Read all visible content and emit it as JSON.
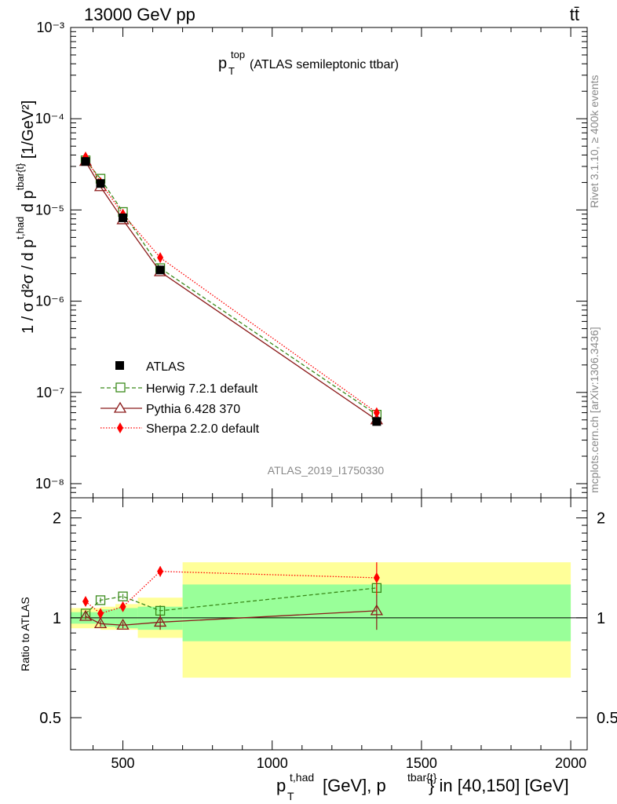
{
  "header": {
    "left_title": "13000 GeV pp",
    "right_title": "tt̄"
  },
  "main_plot": {
    "title_main": "p",
    "title_sub": "T",
    "title_sup": "top",
    "title_rest": " (ATLAS semileptonic ttbar)",
    "ylabel": "1 / σ d²σ / d p",
    "ylabel_sup1": "t,had",
    "ylabel_mid": " d p",
    "ylabel_sup2": "tbar{t}",
    "ylabel_unit": " [1/GeV²]",
    "analysis_tag": "ATLAS_2019_I1750330",
    "side_text_top": "Rivet 3.1.10, ≥ 400k events",
    "side_text_bottom": "mcplots.cern.ch [arXiv:1306.3436]"
  },
  "ratio_plot": {
    "ylabel": "Ratio to ATLAS"
  },
  "xaxis": {
    "label_p": "p",
    "label_sub": "T",
    "label_sup": "t,had",
    "label_mid": " [GeV], p",
    "label_sup2": "tbar{t}",
    "label_end": "} in [40,150] [GeV]"
  },
  "legend": [
    {
      "name": "ATLAS"
    },
    {
      "name": "Herwig 7.2.1 default"
    },
    {
      "name": "Pythia 6.428 370"
    },
    {
      "name": "Sherpa 2.2.0 default"
    }
  ],
  "chart_data": {
    "type": "line",
    "xlim": [
      325,
      2055
    ],
    "ylim_main": [
      7e-09,
      0.001
    ],
    "ylim_ratio": [
      0.4,
      2.3
    ],
    "xticks": [
      500,
      1000,
      1500,
      2000
    ],
    "xtick_labels": [
      "500",
      "1000",
      "1500",
      "2000"
    ],
    "ytick_labels_main": [
      "10⁻³",
      "10⁻⁴",
      "10⁻⁵",
      "10⁻⁶",
      "10⁻⁷",
      "10⁻⁸"
    ],
    "ytick_values_main": [
      0.001,
      0.0001,
      1e-05,
      1e-06,
      1e-07,
      1e-08
    ],
    "ytick_labels_ratio": [
      "2",
      "1",
      "0.5"
    ],
    "ytick_values_ratio": [
      2,
      1,
      0.5
    ],
    "bins": [
      [
        325,
        425
      ],
      [
        425,
        475
      ],
      [
        475,
        550
      ],
      [
        550,
        700
      ],
      [
        700,
        2000
      ]
    ],
    "x": [
      375,
      425,
      500,
      625,
      1350
    ],
    "series": [
      {
        "name": "ATLAS",
        "values": [
          3.4e-05,
          1.95e-05,
          8.2e-06,
          2.2e-06,
          4.8e-08
        ],
        "color": "#000000"
      },
      {
        "name": "Herwig 7.2.1 default",
        "values": [
          3.5e-05,
          2.2e-05,
          9.5e-06,
          2.3e-06,
          5.7e-08
        ],
        "ratio": [
          1.03,
          1.13,
          1.16,
          1.05,
          1.23
        ],
        "ratio_err": [
          0.02,
          0.02,
          0.02,
          0.04,
          0.03
        ],
        "color": "#3a8a1a"
      },
      {
        "name": "Pythia 6.428 370",
        "values": [
          3.4e-05,
          1.8e-05,
          7.8e-06,
          2.1e-06,
          5e-08
        ],
        "ratio": [
          1.01,
          0.96,
          0.95,
          0.97,
          1.05
        ],
        "ratio_err": [
          0.02,
          0.02,
          0.02,
          0.05,
          0.13
        ],
        "color": "#8b1a1a"
      },
      {
        "name": "Sherpa 2.2.0 default",
        "values": [
          3.8e-05,
          2e-05,
          9e-06,
          3e-06,
          6e-08
        ],
        "ratio": [
          1.12,
          1.03,
          1.08,
          1.38,
          1.32
        ],
        "ratio_err": [
          0.03,
          0.03,
          0.03,
          0.05,
          0.15
        ],
        "color": "#ff0000"
      }
    ],
    "band_inner": [
      [
        0.96,
        1.04
      ],
      [
        0.94,
        1.06
      ],
      [
        0.93,
        1.07
      ],
      [
        0.92,
        1.08
      ],
      [
        0.85,
        1.26
      ]
    ],
    "band_outer": [
      [
        0.93,
        1.07
      ],
      [
        0.92,
        1.08
      ],
      [
        0.92,
        1.1
      ],
      [
        0.87,
        1.15
      ],
      [
        0.66,
        1.47
      ]
    ]
  }
}
